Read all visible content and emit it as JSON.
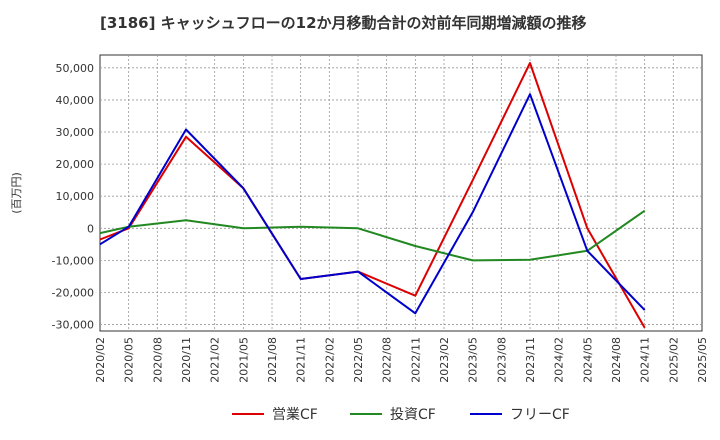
{
  "chart_data": {
    "type": "line",
    "title": "[3186]  キャッシュフローの12か月移動合計の対前年同期増減額の推移",
    "ylabel": "(百万円)",
    "xlabel": "",
    "ylim": [
      -32000,
      54000
    ],
    "yticks": [
      -30000,
      -20000,
      -10000,
      0,
      10000,
      20000,
      30000,
      40000,
      50000
    ],
    "ytick_labels": [
      "-30,000",
      "-20,000",
      "-10,000",
      "0",
      "10,000",
      "20,000",
      "30,000",
      "40,000",
      "50,000"
    ],
    "categories": [
      "2020/02",
      "2020/05",
      "2020/08",
      "2020/11",
      "2021/02",
      "2021/05",
      "2021/08",
      "2021/11",
      "2022/02",
      "2022/05",
      "2022/08",
      "2022/11",
      "2023/02",
      "2023/05",
      "2023/08",
      "2023/11",
      "2024/02",
      "2024/05",
      "2024/08",
      "2024/11",
      "2025/02",
      "2025/05"
    ],
    "grid": true,
    "legend_position": "bottom",
    "series": [
      {
        "name": "営業CF",
        "color": "#dd0000",
        "points": [
          [
            0,
            -3500
          ],
          [
            1,
            0
          ],
          [
            3,
            28500
          ],
          [
            5,
            12500
          ],
          [
            7,
            -15800
          ],
          [
            9,
            -13500
          ],
          [
            11,
            -21000
          ],
          [
            13,
            15000
          ],
          [
            15,
            51500
          ],
          [
            17,
            0
          ],
          [
            19,
            -31000
          ]
        ]
      },
      {
        "name": "投資CF",
        "color": "#228822",
        "points": [
          [
            0,
            -1500
          ],
          [
            1,
            500
          ],
          [
            3,
            2500
          ],
          [
            5,
            0
          ],
          [
            7,
            500
          ],
          [
            9,
            0
          ],
          [
            11,
            -5500
          ],
          [
            13,
            -10000
          ],
          [
            15,
            -9800
          ],
          [
            17,
            -7000
          ],
          [
            19,
            5500
          ]
        ]
      },
      {
        "name": "フリーCF",
        "color": "#0000cc",
        "points": [
          [
            0,
            -5000
          ],
          [
            1,
            500
          ],
          [
            3,
            30800
          ],
          [
            5,
            12500
          ],
          [
            7,
            -15800
          ],
          [
            9,
            -13500
          ],
          [
            11,
            -26500
          ],
          [
            13,
            5000
          ],
          [
            15,
            41800
          ],
          [
            17,
            -7000
          ],
          [
            19,
            -25500
          ]
        ]
      }
    ]
  }
}
